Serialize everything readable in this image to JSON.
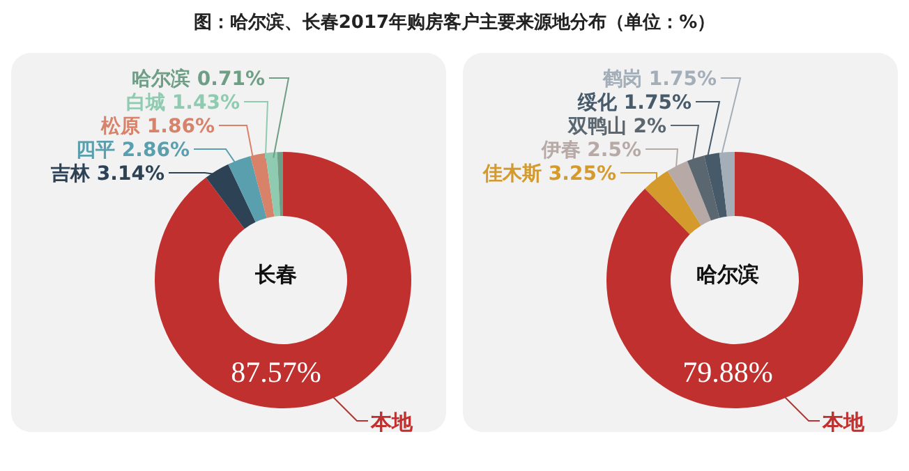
{
  "chart_data": [
    {
      "type": "donut",
      "title": "图：哈尔滨、长春2017年购房客户主要来源地分布（单位：%）",
      "annotations": [
        "长春"
      ],
      "categories": [
        "本地",
        "吉林",
        "四平",
        "松原",
        "白城",
        "哈尔滨"
      ],
      "values": [
        87.57,
        3.14,
        2.86,
        1.86,
        1.43,
        0.71
      ],
      "value_labels": [
        "87.57%",
        "3.14%",
        "2.86%",
        "1.86%",
        "1.43%",
        "0.71%"
      ],
      "colors": [
        "#c0302e",
        "#2e4256",
        "#5a9fae",
        "#d8826a",
        "#8fcbb0",
        "#6f9e86"
      ]
    },
    {
      "type": "donut",
      "annotations": [
        "哈尔滨"
      ],
      "categories": [
        "本地",
        "佳木斯",
        "伊春",
        "双鸭山",
        "绥化",
        "鹤岗"
      ],
      "values": [
        79.88,
        3.25,
        2.5,
        2,
        1.75,
        1.75
      ],
      "value_labels": [
        "79.88%",
        "3.25%",
        "2.5%",
        "2%",
        "1.75%",
        "1.75%"
      ],
      "colors": [
        "#c0302e",
        "#d49a2c",
        "#b7a9a6",
        "#5b6770",
        "#465a6a",
        "#a3aeb9"
      ]
    }
  ]
}
